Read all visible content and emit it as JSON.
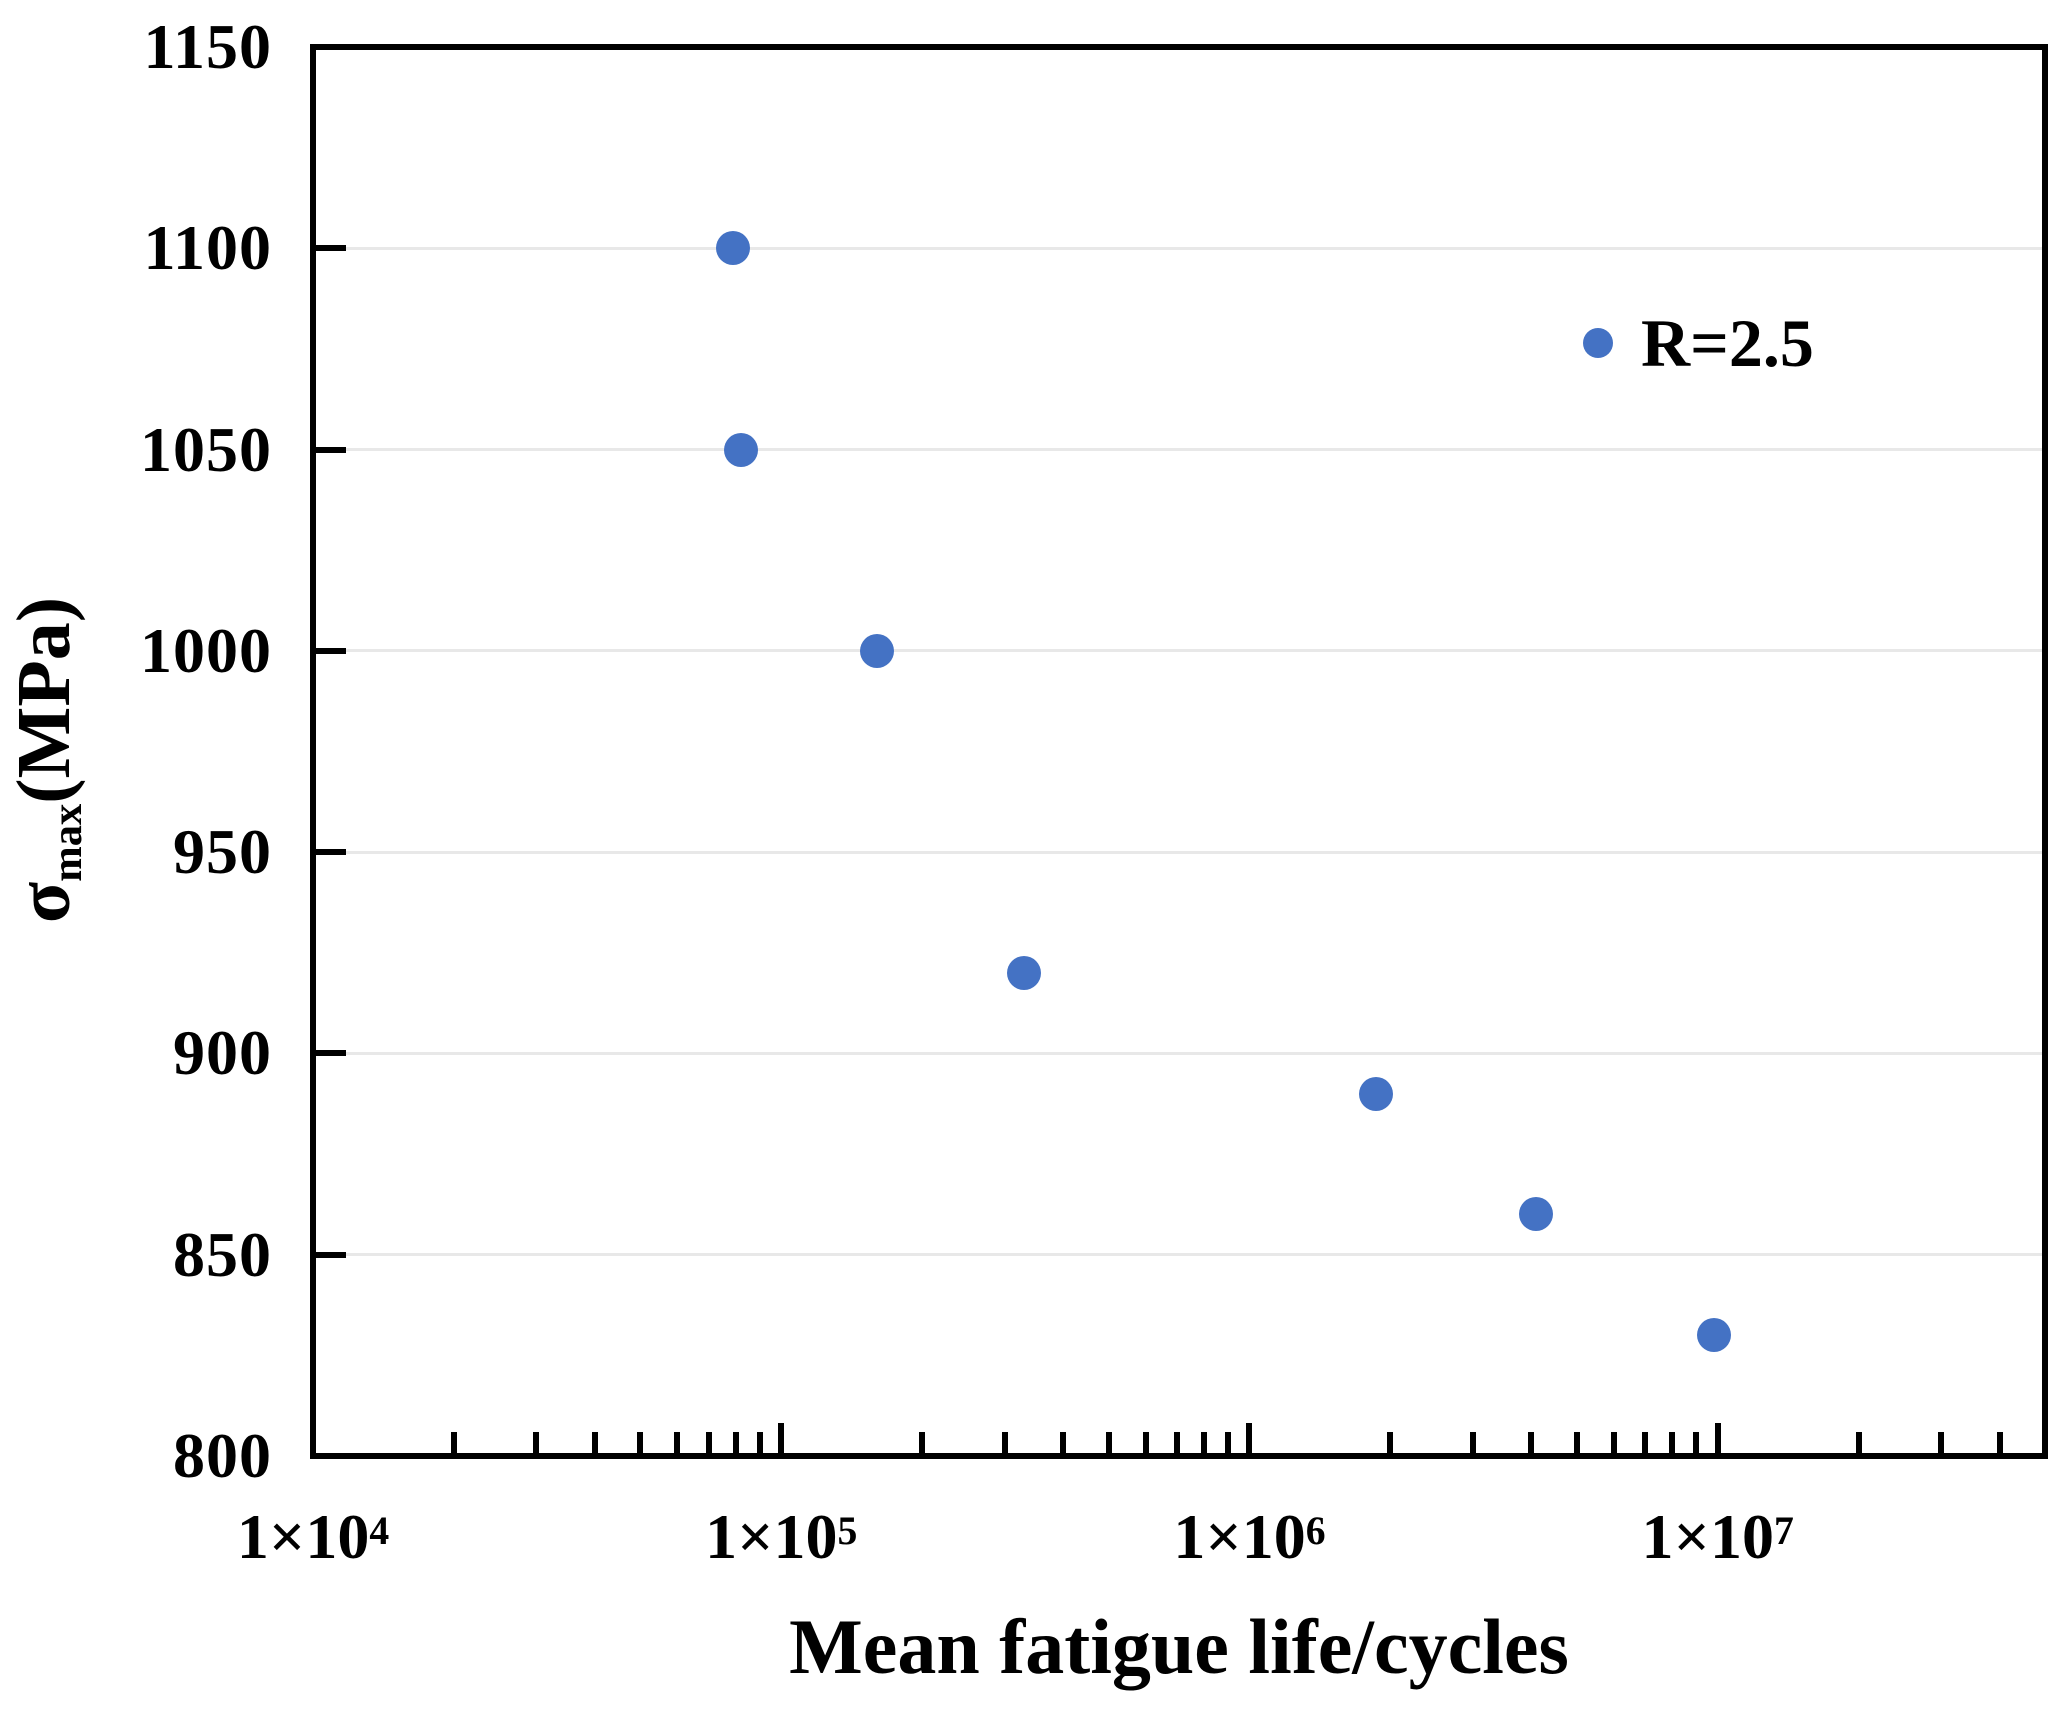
{
  "chart_data": {
    "type": "scatter",
    "xlabel": "Mean fatigue life/cycles",
    "ylabel": "σmax(MPa)",
    "ylabel_parts": {
      "sigma": "σ",
      "subscript": "max",
      "units": "(MPa)"
    },
    "xscale": "log",
    "xlim": [
      10000,
      50000000
    ],
    "ylim": [
      800,
      1150
    ],
    "yticks": [
      1150,
      1100,
      1050,
      1000,
      950,
      900,
      850,
      800
    ],
    "xticks": [
      {
        "value": 10000,
        "base": "1×10",
        "sup": "4"
      },
      {
        "value": 100000,
        "base": "1×10",
        "sup": "5"
      },
      {
        "value": 1000000,
        "base": "1×10",
        "sup": "6"
      },
      {
        "value": 10000000,
        "base": "1×10",
        "sup": "7"
      }
    ],
    "grid": "horizontal-only",
    "legend": {
      "label": "R=2.5",
      "position": "upper-right"
    },
    "series": [
      {
        "name": "R=2.5",
        "color": "#4472C4",
        "points": [
          {
            "x": 79000,
            "y": 1100
          },
          {
            "x": 82000,
            "y": 1050
          },
          {
            "x": 160000,
            "y": 1000
          },
          {
            "x": 330000,
            "y": 920
          },
          {
            "x": 1860000,
            "y": 890
          },
          {
            "x": 4100000,
            "y": 860
          },
          {
            "x": 9800000,
            "y": 830
          }
        ]
      }
    ]
  },
  "colors": {
    "point": "#4472C4",
    "grid": "#E8E8E8",
    "axis": "#000000",
    "background": "#FFFFFF"
  }
}
